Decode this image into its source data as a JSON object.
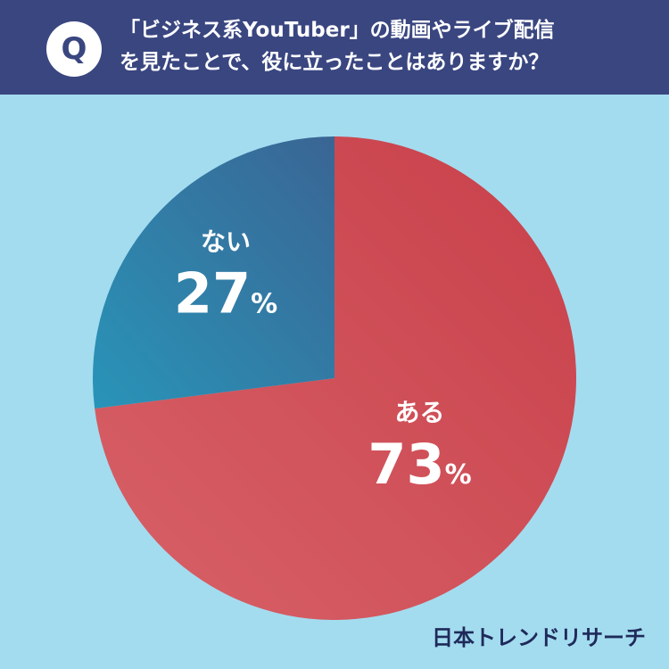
{
  "header": {
    "badge": "Q",
    "question_line1": "「ビジネス系YouTuber」の動画やライブ配信",
    "question_line2": "を見たことで、役に立ったことはありますか？"
  },
  "chart_data": {
    "type": "pie",
    "slices": [
      {
        "label": "ある",
        "value": 73,
        "display": "73",
        "unit": "%",
        "color": "#cf4a50"
      },
      {
        "label": "ない",
        "value": 27,
        "display": "27",
        "unit": "%",
        "color": "#2f7fa8"
      }
    ],
    "start_angle_deg": 0,
    "direction": "clockwise"
  },
  "brand": "日本トレンドリサーチ",
  "colors": {
    "background": "#a3dcef",
    "header": "#3a4680",
    "brand_text": "#1f2a5a"
  }
}
